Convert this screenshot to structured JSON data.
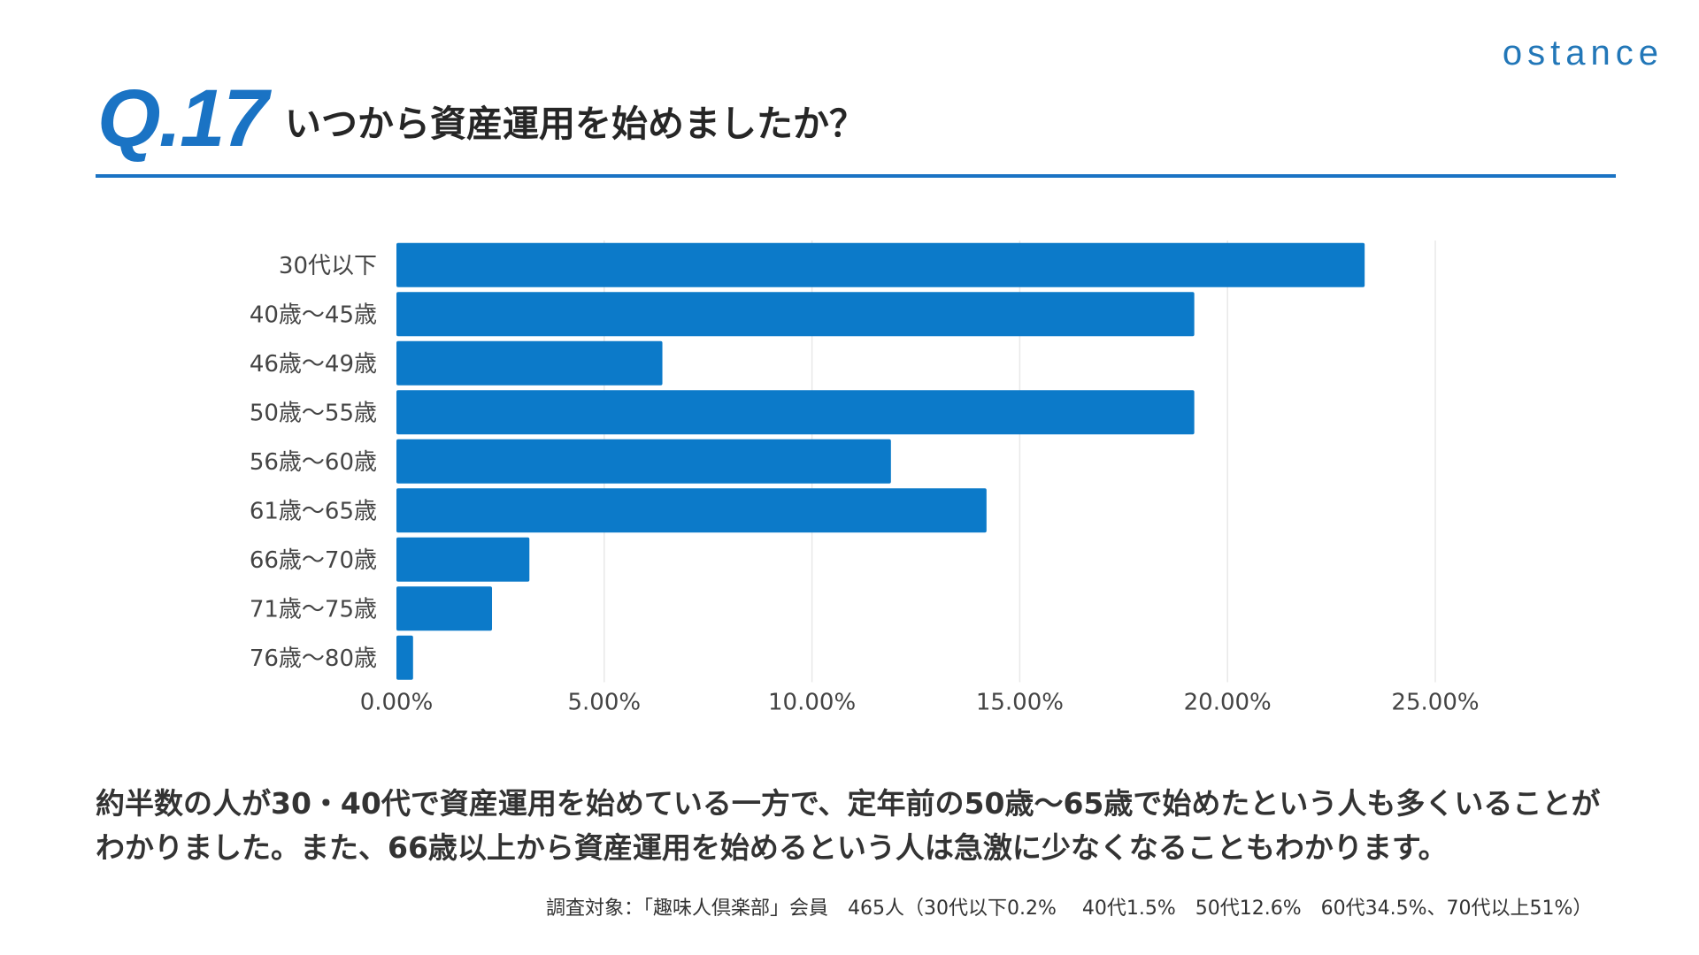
{
  "header": {
    "logo_text": "ostance",
    "question_label": "Q.17",
    "question_text": "いつから資産運用を始めましたか？"
  },
  "colors": {
    "accent": "#1a73c4",
    "bar": "#0c7ac9",
    "grid": "#e8e8e8",
    "text": "#333333"
  },
  "chart_data": {
    "type": "bar",
    "orientation": "horizontal",
    "title": "",
    "xlabel": "",
    "ylabel": "",
    "categories": [
      "30代以下",
      "40歳～45歳",
      "46歳～49歳",
      "50歳～55歳",
      "56歳～60歳",
      "61歳～65歳",
      "66歳～70歳",
      "71歳～75歳",
      "76歳～80歳"
    ],
    "values": [
      23.3,
      19.2,
      6.4,
      19.2,
      11.9,
      14.2,
      3.2,
      2.3,
      0.4
    ],
    "value_unit": "%",
    "xlim": [
      0,
      25
    ],
    "x_ticks": [
      0,
      5,
      10,
      15,
      20,
      25
    ],
    "x_tick_labels": [
      "0.00%",
      "5.00%",
      "10.00%",
      "15.00%",
      "20.00%",
      "25.00%"
    ],
    "grid": true,
    "legend": "none"
  },
  "summary": {
    "text": "約半数の人が30・40代で資産運用を始めている一方で、定年前の50歳～65歳で始めたという人も多くいることがわかりました。また、66歳以上から資産運用を始めるという人は急激に少なくなることもわかります。"
  },
  "footnote": {
    "text": "調査対象：「趣味人倶楽部」会員　465人（30代以下0.2%　 40代1.5%　50代12.6%　60代34.5%、70代以上51%）"
  }
}
